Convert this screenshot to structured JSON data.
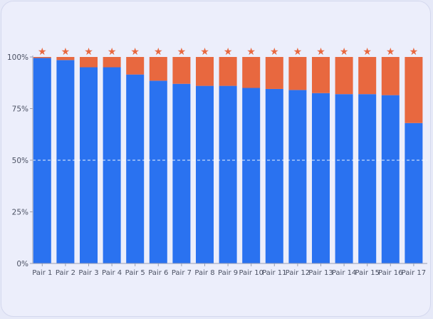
{
  "chart_data": {
    "type": "bar",
    "stacked": true,
    "normalized_percent": true,
    "categories": [
      "Pair 1",
      "Pair 2",
      "Pair 3",
      "Pair 4",
      "Pair 5",
      "Pair 6",
      "Pair 7",
      "Pair 8",
      "Pair 9",
      "Pair 10",
      "Pair 11",
      "Pair 12",
      "Pair 13",
      "Pair 14",
      "Pair 15",
      "Pair 16",
      "Pair 17"
    ],
    "series": [
      {
        "color": "#2a72f0",
        "values": [
          99.5,
          98.5,
          95,
          95,
          91.5,
          88.5,
          87,
          86,
          86,
          85,
          84.5,
          84,
          82.5,
          82,
          82,
          81.5,
          68
        ]
      },
      {
        "color": "#e8683f",
        "values": [
          0.5,
          1.5,
          5,
          5,
          8.5,
          11.5,
          13,
          14,
          14,
          15,
          15.5,
          16,
          17.5,
          18,
          18,
          18.5,
          32
        ]
      }
    ],
    "markers": {
      "glyph": "★",
      "color": "#e8683f",
      "on_categories": "all"
    },
    "y_ticks": [
      "0%",
      "25%",
      "50%",
      "75%",
      "100%"
    ],
    "ylim": [
      0,
      100
    ],
    "reference_line": {
      "y": 50,
      "style": "dashed",
      "color": "#ffffff"
    },
    "title": "",
    "xlabel": "",
    "ylabel": "",
    "legend": "none",
    "grid": false
  }
}
